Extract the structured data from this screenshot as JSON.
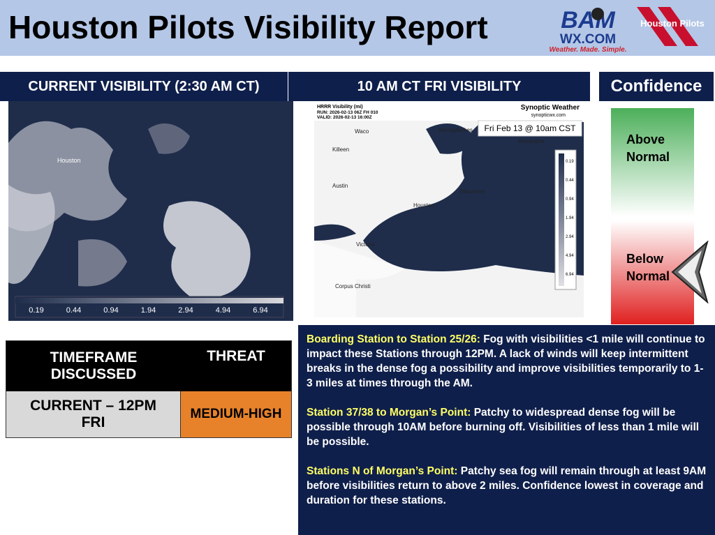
{
  "header": {
    "title": "Houston Pilots Visibility Report",
    "logo_main": "BAM",
    "logo_sub": "WX.COM",
    "logo_tagline": "Weather. Made. Simple.",
    "logo_pilots": "Houston Pilots"
  },
  "current_map": {
    "title": "CURRENT VISIBILITY (2:30 AM CT)",
    "legend": [
      "0.19",
      "0.44",
      "0.94",
      "1.94",
      "2.94",
      "4.94",
      "6.94"
    ],
    "places": [
      "Houston"
    ]
  },
  "forecast_map": {
    "title": "10 AM CT FRI VISIBILITY",
    "product": "HRRR Visibility (mi)",
    "run": "RUN: 2026-02-13 06Z FH 010",
    "valid": "VALID: 2026-02-13 16:00Z",
    "brand": "Synoptic Weather",
    "site": "synopticwx.com",
    "stamp": "Fri Feb 13 @ 10am CST",
    "legend": [
      "0.19",
      "0.44",
      "0.94",
      "1.94",
      "2.94",
      "4.94",
      "6.94"
    ],
    "places": [
      "Waco",
      "Killeen",
      "Nacogdoches",
      "Alexandria",
      "Austin",
      "Beaumont",
      "Houston",
      "Victoria",
      "Corpus Christi"
    ]
  },
  "confidence": {
    "title": "Confidence",
    "high": "Above Normal",
    "low": "Below Normal"
  },
  "table": {
    "headers": [
      "TIMEFRAME DISCUSSED",
      "THREAT"
    ],
    "rows": [
      [
        "CURRENT – 12PM FRI",
        "MEDIUM-HIGH"
      ]
    ]
  },
  "notes": [
    {
      "label": "Boarding Station to Station 25/26:",
      "text": "Fog with visibilities <1 mile will continue to impact these Stations through 12PM. A lack of winds will keep intermittent breaks in the dense fog a possibility and improve visibilities temporarily to 1-3 miles at times through the AM."
    },
    {
      "label": "Station 37/38 to Morgan’s Point:",
      "text": "Patchy to widespread dense fog will be possible through 10AM before burning off. Visibilities of less than 1 mile will be possible."
    },
    {
      "label": "Stations N of Morgan’s Point:",
      "text": "Patchy sea fog will remain through at least 9AM before visibilities return to above 2 miles. Confidence lowest in coverage and duration for these stations."
    }
  ]
}
